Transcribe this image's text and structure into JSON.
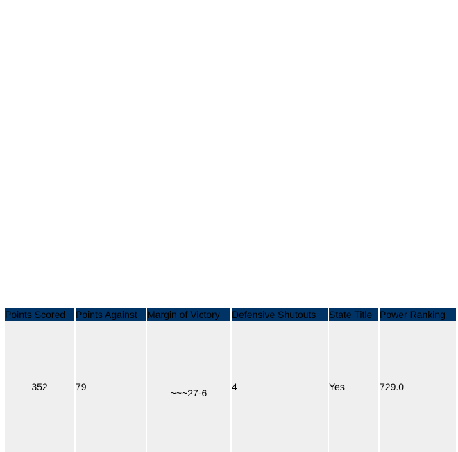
{
  "table": {
    "headers": {
      "points_scored": "Points Scored",
      "points_against": "Points Against",
      "margin_of_victory": "Margin of Victory",
      "defensive_shutouts": "Defensive Shutouts",
      "state_title": "State Title",
      "power_ranking": "Power Ranking"
    },
    "row": {
      "points_scored": "352",
      "points_against": "79",
      "margin_of_victory": "~~~27-6",
      "defensive_shutouts": "4",
      "state_title": "Yes",
      "power_ranking": "729.0"
    },
    "colors": {
      "header_bg": "#003366",
      "cell_bg": "#efefef"
    }
  }
}
